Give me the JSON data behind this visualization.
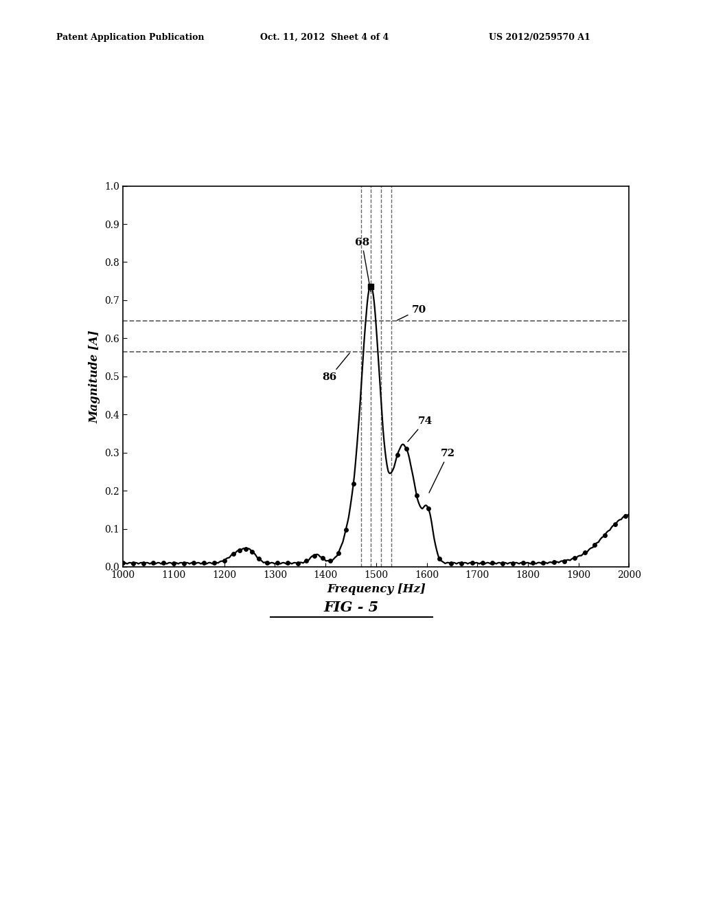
{
  "title": "FIG - 5",
  "xlabel": "Frequency [Hz]",
  "ylabel": "Magnitude [A]",
  "xlim": [
    1000,
    2000
  ],
  "ylim": [
    0,
    1.0
  ],
  "xticks": [
    1000,
    1100,
    1200,
    1300,
    1400,
    1500,
    1600,
    1700,
    1800,
    1900,
    2000
  ],
  "yticks": [
    0,
    0.1,
    0.2,
    0.3,
    0.4,
    0.5,
    0.6,
    0.7,
    0.8,
    0.9,
    1
  ],
  "dashed_hlines": [
    0.645,
    0.565
  ],
  "dashed_vlines": [
    1470,
    1490,
    1510,
    1530
  ],
  "header_left": "Patent Application Publication",
  "header_mid": "Oct. 11, 2012  Sheet 4 of 4",
  "header_right": "US 2012/0259570 A1",
  "background_color": "#ffffff",
  "line_color": "#000000",
  "dot_color": "#000000",
  "dashed_color": "#666666"
}
